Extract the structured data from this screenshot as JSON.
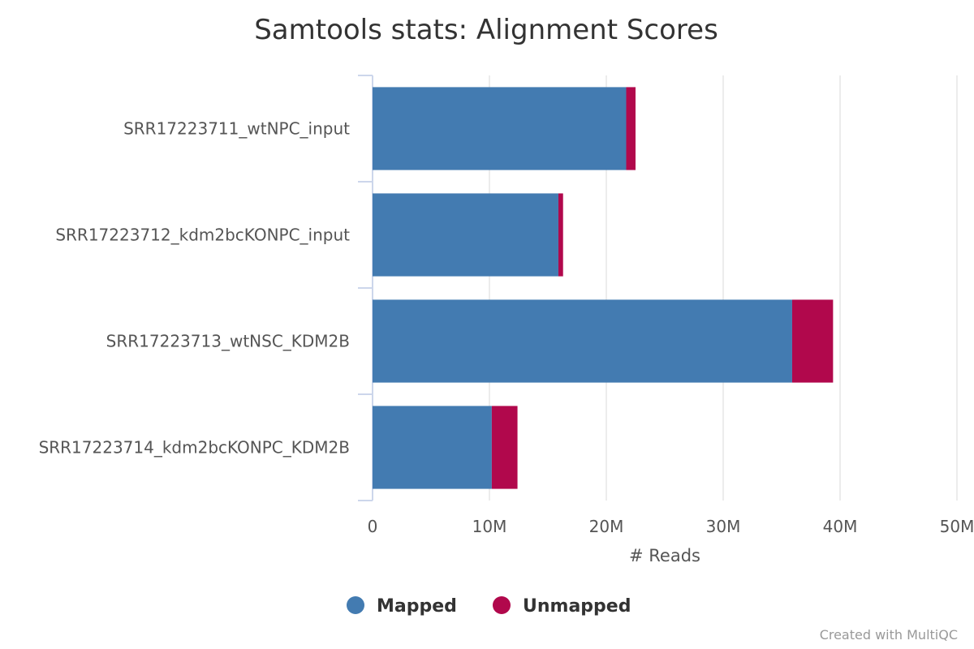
{
  "chart_data": {
    "type": "bar",
    "orientation": "horizontal",
    "stacked": true,
    "title": "Samtools stats: Alignment Scores",
    "xlabel": "# Reads",
    "ylabel": "",
    "categories": [
      "SRR17223711_wtNPC_input",
      "SRR17223712_kdm2bcKONPC_input",
      "SRR17223713_wtNSC_KDM2B",
      "SRR17223714_kdm2bcKONPC_KDM2B"
    ],
    "series": [
      {
        "name": "Mapped",
        "color": "#437bb1",
        "values": [
          21700000,
          15900000,
          35900000,
          10200000
        ]
      },
      {
        "name": "Unmapped",
        "color": "#b1084c",
        "values": [
          800000,
          400000,
          3500000,
          2200000
        ]
      }
    ],
    "xlim": [
      0,
      50000000
    ],
    "xticks": [
      0,
      10000000,
      20000000,
      30000000,
      40000000,
      50000000
    ],
    "xtick_labels": [
      "0",
      "10M",
      "20M",
      "30M",
      "40M",
      "50M"
    ],
    "grid": true,
    "legend_position": "bottom-center"
  },
  "credit": "Created with MultiQC"
}
